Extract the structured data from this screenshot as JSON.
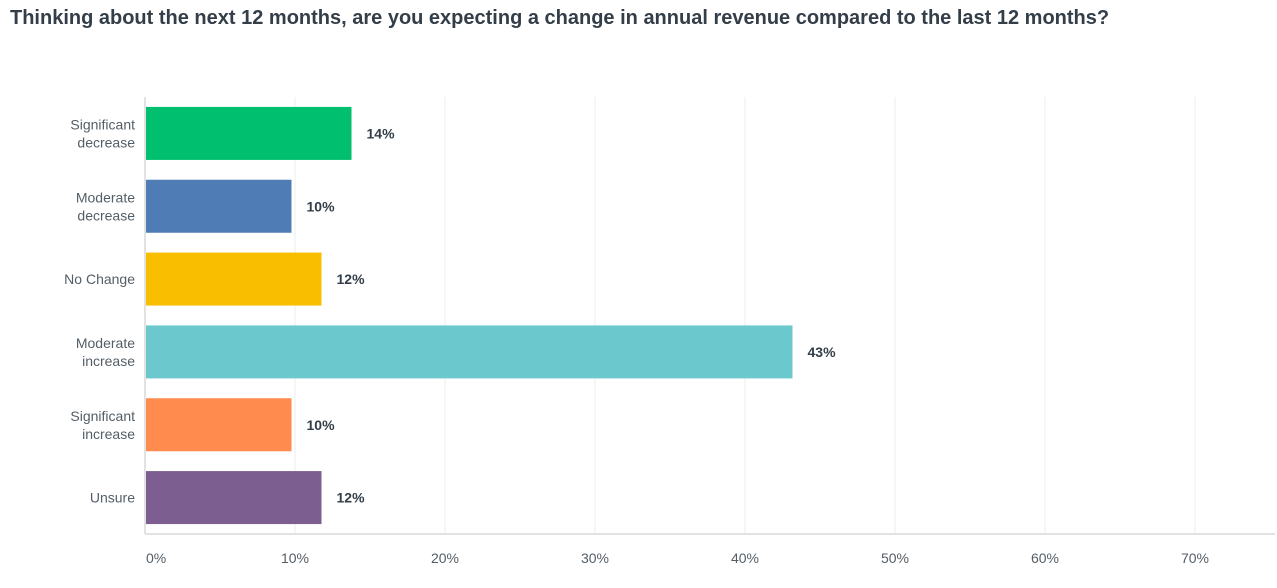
{
  "chart_data": {
    "type": "bar",
    "orientation": "horizontal",
    "title": "Thinking about the next 12 months, are you expecting a change in annual revenue compared to the last 12 months?",
    "xlabel": "",
    "ylabel": "",
    "categories": [
      [
        "Significant",
        "decrease"
      ],
      [
        "Moderate",
        "decrease"
      ],
      [
        "No Change"
      ],
      [
        "Moderate",
        "increase"
      ],
      [
        "Significant",
        "increase"
      ],
      [
        "Unsure"
      ]
    ],
    "values": [
      13.7,
      9.7,
      11.7,
      43.1,
      9.7,
      11.7
    ],
    "data_labels": [
      "14%",
      "10%",
      "12%",
      "43%",
      "10%",
      "12%"
    ],
    "colors": [
      "#00bf6f",
      "#507cb6",
      "#f9be00",
      "#6bc8cd",
      "#ff8b4f",
      "#7d5e90"
    ],
    "xlim": [
      0,
      75
    ],
    "xticks": [
      0,
      10,
      20,
      30,
      40,
      50,
      60,
      70
    ],
    "xtick_labels": [
      "0%",
      "10%",
      "20%",
      "30%",
      "40%",
      "50%",
      "60%",
      "70%"
    ],
    "grid": true,
    "legend": "none"
  }
}
